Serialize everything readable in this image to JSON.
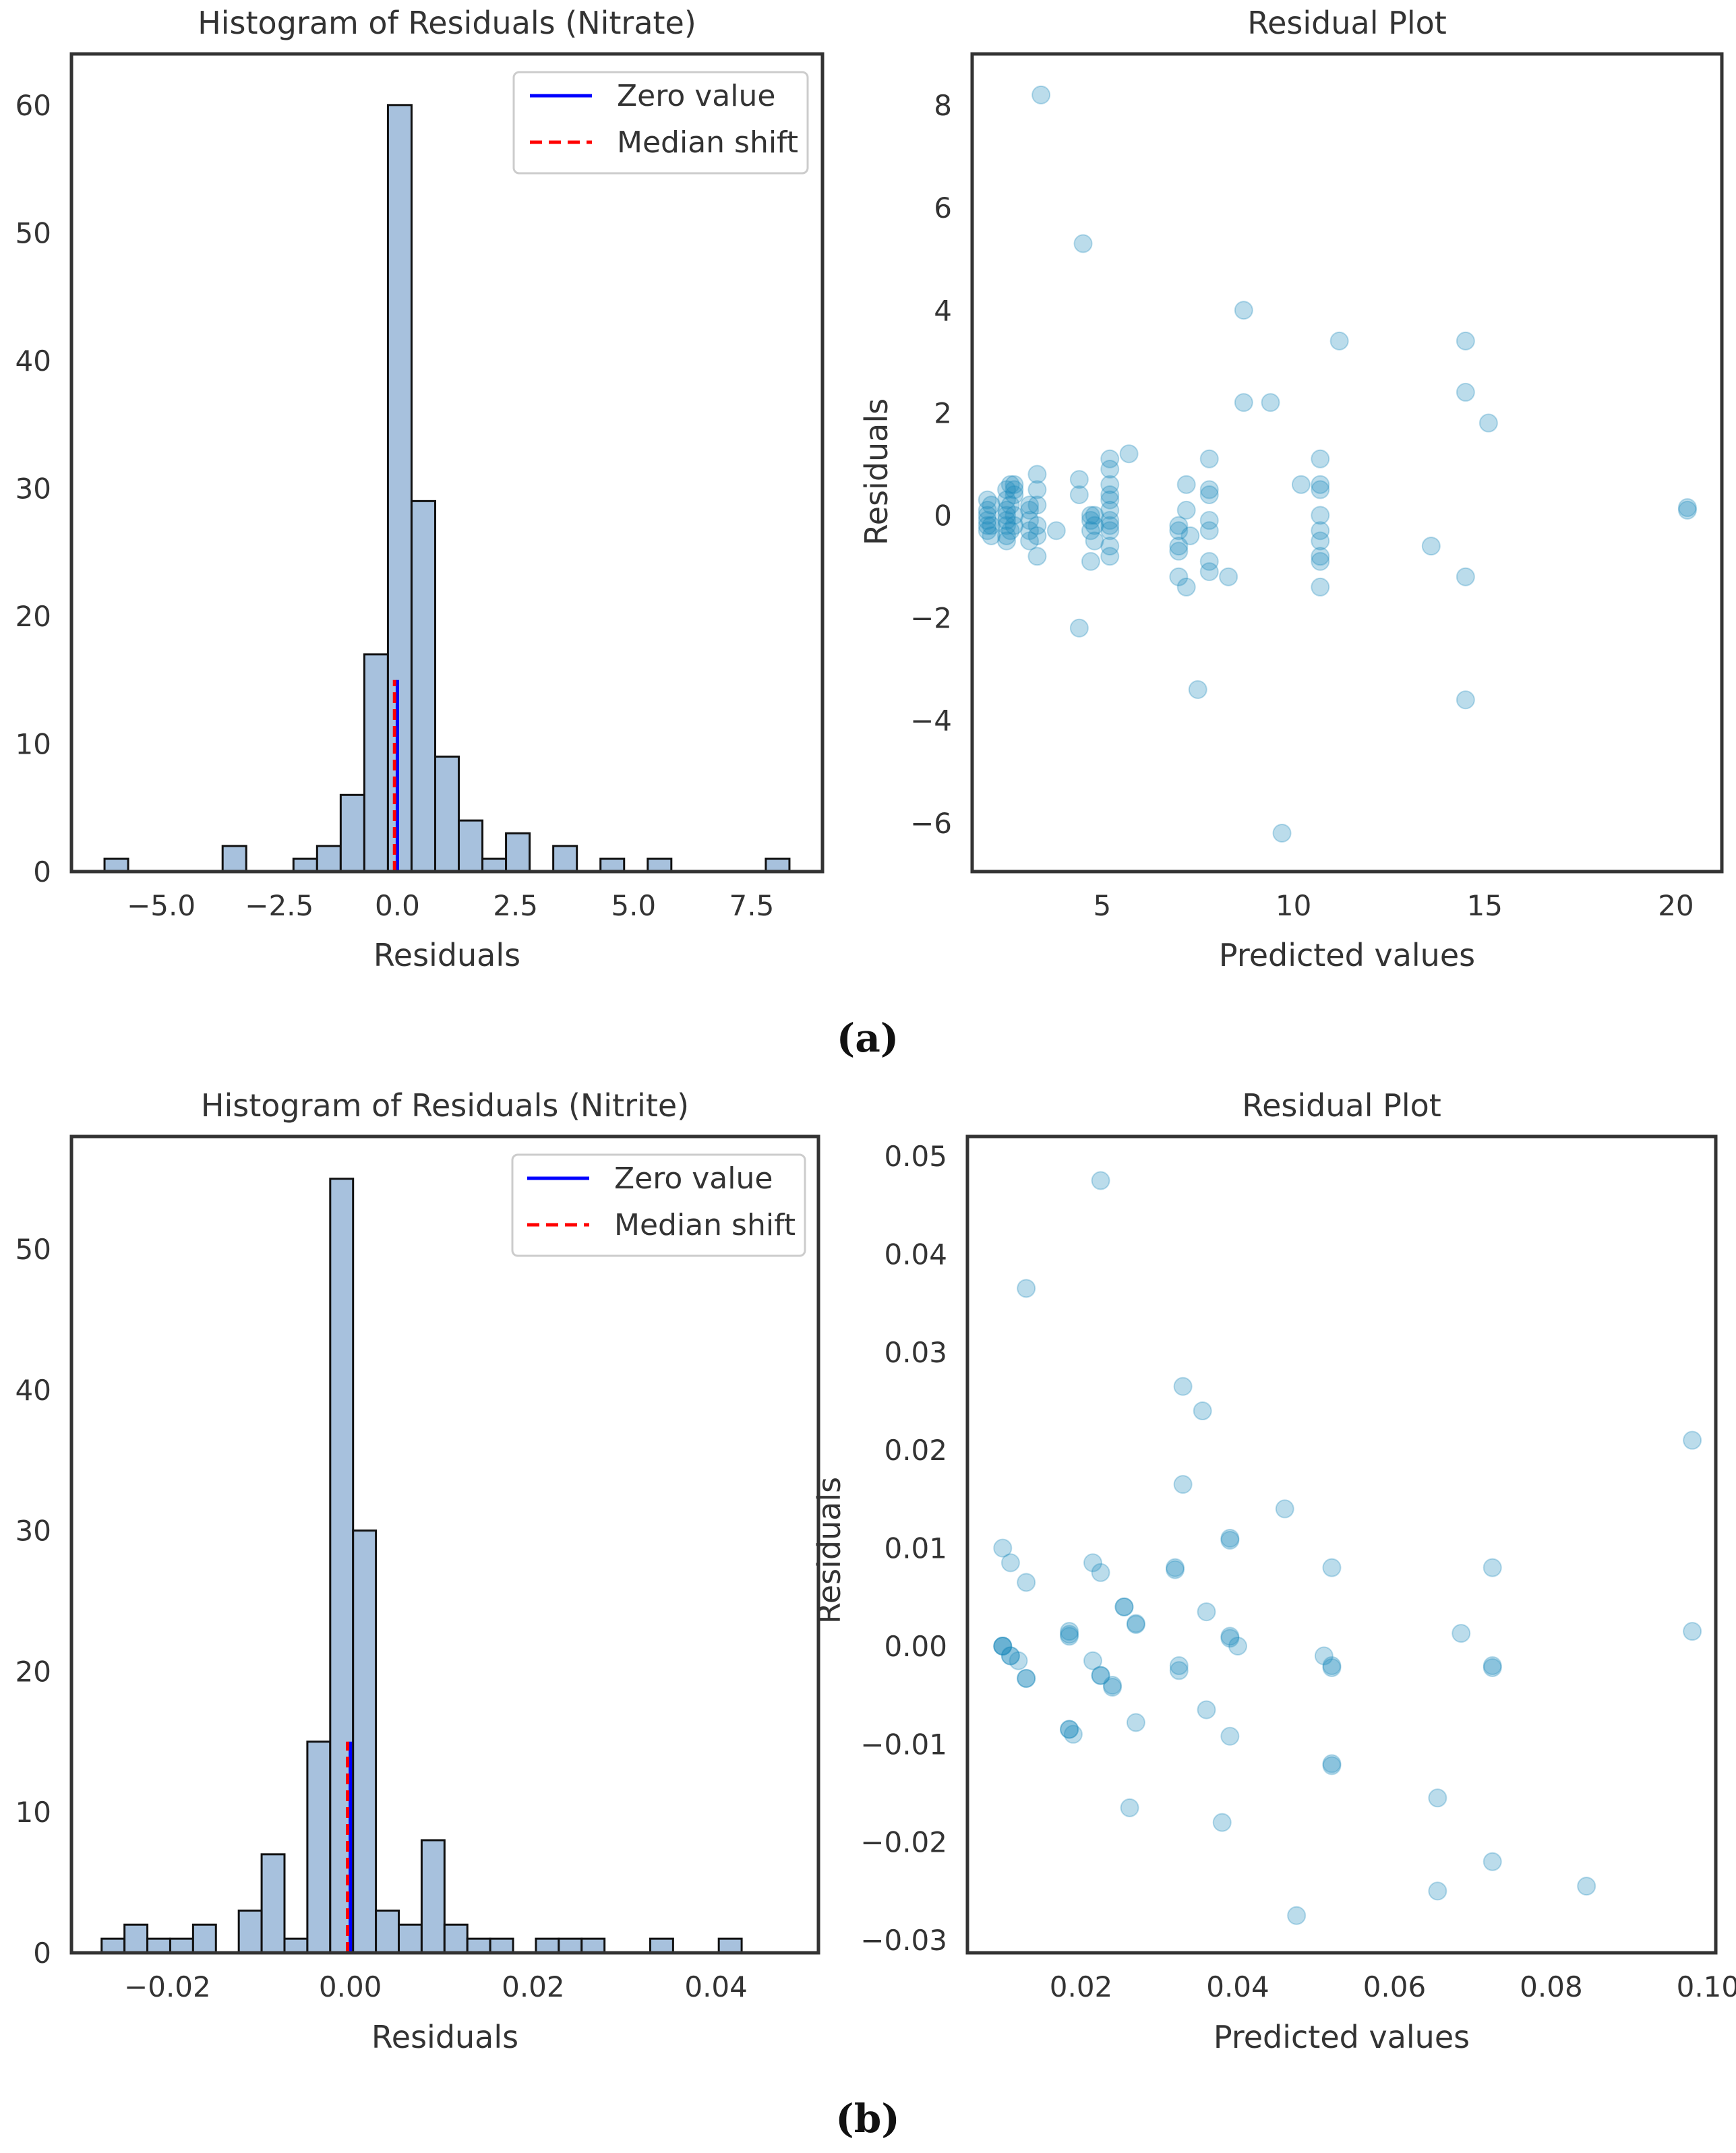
{
  "colors": {
    "hist_fill": "#a7c1dd",
    "hist_edge": "#111111",
    "zero_line": "#0000ff",
    "median_line": "#ff0000",
    "scatter": "#1f8bbd",
    "axes": "#333333",
    "text": "#333333"
  },
  "panel_labels": {
    "a": "(a)",
    "b": "(b)"
  },
  "chart_data": [
    {
      "id": "hist_nitrate",
      "type": "bar",
      "title": "Histogram of Residuals (Nitrate)",
      "xlabel": "Residuals",
      "ylabel": "",
      "xlim": [
        -6.9,
        9.0
      ],
      "ylim": [
        0,
        64
      ],
      "xticks": [
        -5.0,
        -2.5,
        0.0,
        2.5,
        5.0,
        7.5
      ],
      "xtick_labels": [
        "−5.0",
        "−2.5",
        "0.0",
        "2.5",
        "5.0",
        "7.5"
      ],
      "yticks": [
        0,
        10,
        20,
        30,
        40,
        50,
        60
      ],
      "ytick_labels": [
        "0",
        "10",
        "20",
        "30",
        "40",
        "50",
        "60"
      ],
      "bin_start": -6.2,
      "bin_width": 0.5,
      "values": [
        1,
        0,
        0,
        0,
        0,
        2,
        0,
        0,
        1,
        2,
        6,
        17,
        60,
        29,
        9,
        4,
        1,
        3,
        0,
        2,
        0,
        1,
        0,
        1,
        0,
        0,
        0,
        0,
        1
      ],
      "zero_line": {
        "x": 0.0,
        "y_top": 15,
        "label": "Zero value"
      },
      "median_line": {
        "x": -0.06,
        "y_top": 15,
        "label": "Median shift"
      },
      "legend": [
        "Zero value",
        "Median shift"
      ],
      "legend_position": "top-right"
    },
    {
      "id": "scatter_nitrate",
      "type": "scatter",
      "title": "Residual Plot",
      "xlabel": "Predicted values",
      "ylabel": "Residuals",
      "xlim": [
        1.6,
        21.2
      ],
      "ylim": [
        -6.95,
        9.0
      ],
      "xticks": [
        5,
        10,
        15,
        20
      ],
      "xtick_labels": [
        "5",
        "10",
        "15",
        "20"
      ],
      "yticks": [
        -6,
        -4,
        -2,
        0,
        2,
        4,
        6,
        8
      ],
      "ytick_labels": [
        "−6",
        "−4",
        "−2",
        "0",
        "2",
        "4",
        "6",
        "8"
      ],
      "points": [
        [
          2.0,
          0.3
        ],
        [
          2.0,
          0.1
        ],
        [
          2.0,
          0.0
        ],
        [
          2.0,
          -0.1
        ],
        [
          2.0,
          -0.2
        ],
        [
          2.0,
          -0.3
        ],
        [
          2.1,
          -0.2
        ],
        [
          2.1,
          0.2
        ],
        [
          2.1,
          -0.4
        ],
        [
          2.5,
          0.5
        ],
        [
          2.5,
          0.3
        ],
        [
          2.5,
          0.1
        ],
        [
          2.5,
          0.0
        ],
        [
          2.5,
          -0.1
        ],
        [
          2.5,
          -0.2
        ],
        [
          2.5,
          -0.4
        ],
        [
          2.5,
          -0.5
        ],
        [
          2.6,
          0.6
        ],
        [
          2.6,
          0.2
        ],
        [
          2.6,
          -0.3
        ],
        [
          2.7,
          0.4
        ],
        [
          2.7,
          0.0
        ],
        [
          2.7,
          -0.2
        ],
        [
          2.7,
          0.5
        ],
        [
          2.7,
          0.6
        ],
        [
          3.1,
          0.1
        ],
        [
          3.1,
          -0.1
        ],
        [
          3.1,
          -0.3
        ],
        [
          3.1,
          -0.5
        ],
        [
          3.1,
          0.2
        ],
        [
          3.3,
          0.8
        ],
        [
          3.3,
          0.5
        ],
        [
          3.3,
          0.2
        ],
        [
          3.3,
          -0.2
        ],
        [
          3.3,
          -0.4
        ],
        [
          3.3,
          -0.8
        ],
        [
          3.4,
          8.2
        ],
        [
          3.8,
          -0.3
        ],
        [
          4.4,
          0.7
        ],
        [
          4.4,
          0.4
        ],
        [
          4.5,
          5.3
        ],
        [
          4.4,
          -2.2
        ],
        [
          4.7,
          0.0
        ],
        [
          4.7,
          -0.1
        ],
        [
          4.7,
          -0.3
        ],
        [
          4.7,
          -0.9
        ],
        [
          4.8,
          -0.2
        ],
        [
          4.8,
          -0.5
        ],
        [
          4.8,
          0.0
        ],
        [
          5.2,
          1.1
        ],
        [
          5.2,
          0.9
        ],
        [
          5.2,
          0.6
        ],
        [
          5.2,
          0.4
        ],
        [
          5.2,
          0.3
        ],
        [
          5.2,
          0.1
        ],
        [
          5.2,
          -0.1
        ],
        [
          5.2,
          -0.3
        ],
        [
          5.2,
          -0.6
        ],
        [
          5.2,
          -0.8
        ],
        [
          5.2,
          -0.2
        ],
        [
          5.7,
          1.2
        ],
        [
          7.0,
          -0.2
        ],
        [
          7.0,
          -0.3
        ],
        [
          7.0,
          -0.6
        ],
        [
          7.0,
          -0.7
        ],
        [
          7.0,
          -1.2
        ],
        [
          7.2,
          0.6
        ],
        [
          7.2,
          0.1
        ],
        [
          7.2,
          -1.4
        ],
        [
          7.3,
          -0.4
        ],
        [
          7.5,
          -3.4
        ],
        [
          7.8,
          1.1
        ],
        [
          7.8,
          0.5
        ],
        [
          7.8,
          0.4
        ],
        [
          7.8,
          -0.1
        ],
        [
          7.8,
          -0.3
        ],
        [
          7.8,
          -0.9
        ],
        [
          7.8,
          -1.1
        ],
        [
          8.3,
          -1.2
        ],
        [
          8.7,
          4.0
        ],
        [
          8.7,
          2.2
        ],
        [
          9.4,
          2.2
        ],
        [
          9.7,
          -6.2
        ],
        [
          10.2,
          0.6
        ],
        [
          10.7,
          1.1
        ],
        [
          10.7,
          0.6
        ],
        [
          10.7,
          0.5
        ],
        [
          10.7,
          0.0
        ],
        [
          10.7,
          -0.3
        ],
        [
          10.7,
          -0.5
        ],
        [
          10.7,
          -0.8
        ],
        [
          10.7,
          -0.9
        ],
        [
          10.7,
          -1.4
        ],
        [
          11.2,
          3.4
        ],
        [
          13.6,
          -0.6
        ],
        [
          14.5,
          3.4
        ],
        [
          14.5,
          2.4
        ],
        [
          14.5,
          -1.2
        ],
        [
          14.5,
          -3.6
        ],
        [
          15.1,
          1.8
        ],
        [
          20.3,
          0.15
        ],
        [
          20.3,
          0.1
        ]
      ],
      "legend_position": "none"
    },
    {
      "id": "hist_nitrite",
      "type": "bar",
      "title": "Histogram of Residuals (Nitrite)",
      "xlabel": "Residuals",
      "ylabel": "",
      "xlim": [
        -0.0305,
        0.0512
      ],
      "ylim": [
        0,
        58
      ],
      "xticks": [
        -0.02,
        0.0,
        0.02,
        0.04
      ],
      "xtick_labels": [
        "−0.02",
        "0.00",
        "0.02",
        "0.04"
      ],
      "yticks": [
        0,
        10,
        20,
        30,
        40,
        50
      ],
      "ytick_labels": [
        "0",
        "10",
        "20",
        "30",
        "40",
        "50"
      ],
      "bin_start": -0.0272,
      "bin_width": 0.0025,
      "values": [
        1,
        2,
        1,
        1,
        2,
        0,
        3,
        7,
        1,
        15,
        55,
        30,
        3,
        2,
        8,
        2,
        1,
        1,
        0,
        1,
        1,
        1,
        0,
        0,
        1,
        0,
        0,
        1
      ],
      "zero_line": {
        "x": 0.0,
        "y_top": 15,
        "label": "Zero value"
      },
      "median_line": {
        "x": -0.0003,
        "y_top": 15,
        "label": "Median shift"
      },
      "legend": [
        "Zero value",
        "Median shift"
      ],
      "legend_position": "top-right"
    },
    {
      "id": "scatter_nitrite",
      "type": "scatter",
      "title": "Residual Plot",
      "xlabel": "Predicted values",
      "ylabel": "Residuals",
      "xlim": [
        0.0055,
        0.101
      ],
      "ylim": [
        -0.0313,
        0.052
      ],
      "xticks": [
        0.02,
        0.04,
        0.06,
        0.08,
        0.1
      ],
      "xtick_labels": [
        "0.02",
        "0.04",
        "0.06",
        "0.08",
        "0.10"
      ],
      "yticks": [
        -0.03,
        -0.02,
        -0.01,
        0.0,
        0.01,
        0.02,
        0.03,
        0.04,
        0.05
      ],
      "ytick_labels": [
        "−0.03",
        "−0.02",
        "−0.01",
        "0.00",
        "0.01",
        "0.02",
        "0.03",
        "0.04",
        "0.05"
      ],
      "points": [
        [
          0.01,
          0.0
        ],
        [
          0.01,
          0.0
        ],
        [
          0.01,
          0.0
        ],
        [
          0.01,
          0.01
        ],
        [
          0.011,
          -0.001
        ],
        [
          0.011,
          -0.001
        ],
        [
          0.011,
          0.0085
        ],
        [
          0.012,
          -0.0015
        ],
        [
          0.013,
          -0.0033
        ],
        [
          0.013,
          -0.0033
        ],
        [
          0.013,
          0.0065
        ],
        [
          0.013,
          0.0365
        ],
        [
          0.0185,
          0.0015
        ],
        [
          0.0185,
          0.0012
        ],
        [
          0.0185,
          0.001
        ],
        [
          0.0185,
          -0.0085
        ],
        [
          0.0185,
          -0.0085
        ],
        [
          0.019,
          -0.009
        ],
        [
          0.0215,
          0.0085
        ],
        [
          0.0215,
          -0.0015
        ],
        [
          0.0225,
          -0.003
        ],
        [
          0.0225,
          -0.003
        ],
        [
          0.0225,
          0.0075
        ],
        [
          0.0225,
          0.0475
        ],
        [
          0.024,
          -0.004
        ],
        [
          0.024,
          -0.0042
        ],
        [
          0.0255,
          0.004
        ],
        [
          0.0255,
          0.004
        ],
        [
          0.0262,
          -0.0165
        ],
        [
          0.027,
          0.0023
        ],
        [
          0.027,
          0.0022
        ],
        [
          0.027,
          -0.0078
        ],
        [
          0.032,
          0.008
        ],
        [
          0.032,
          0.0078
        ],
        [
          0.0325,
          -0.002
        ],
        [
          0.0325,
          -0.0025
        ],
        [
          0.033,
          0.0265
        ],
        [
          0.033,
          0.0165
        ],
        [
          0.0355,
          0.024
        ],
        [
          0.036,
          0.0035
        ],
        [
          0.036,
          -0.0065
        ],
        [
          0.038,
          -0.018
        ],
        [
          0.039,
          0.011
        ],
        [
          0.039,
          0.0108
        ],
        [
          0.039,
          0.001
        ],
        [
          0.039,
          0.0008
        ],
        [
          0.039,
          -0.0092
        ],
        [
          0.04,
          0.0
        ],
        [
          0.046,
          0.014
        ],
        [
          0.0475,
          -0.0275
        ],
        [
          0.051,
          -0.001
        ],
        [
          0.052,
          -0.002
        ],
        [
          0.052,
          -0.0022
        ],
        [
          0.052,
          -0.012
        ],
        [
          0.052,
          -0.0122
        ],
        [
          0.052,
          0.008
        ],
        [
          0.0655,
          -0.025
        ],
        [
          0.0655,
          -0.0155
        ],
        [
          0.0685,
          0.0013
        ],
        [
          0.0725,
          0.008
        ],
        [
          0.0725,
          -0.002
        ],
        [
          0.0725,
          -0.0022
        ],
        [
          0.0725,
          -0.022
        ],
        [
          0.0845,
          -0.0245
        ],
        [
          0.098,
          0.021
        ],
        [
          0.098,
          0.0015
        ]
      ],
      "legend_position": "none"
    }
  ]
}
